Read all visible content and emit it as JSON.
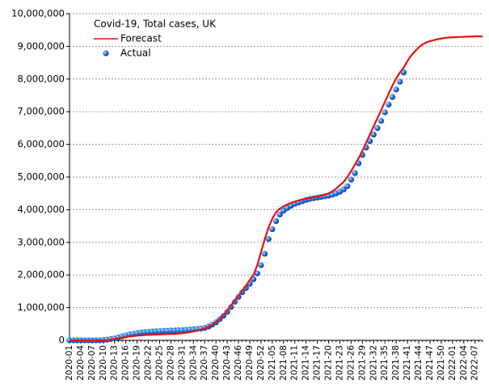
{
  "chart_data": {
    "type": "line",
    "title": "Covid-19, Total cases, UK",
    "categories": [
      "2020-01",
      null,
      null,
      "2020-04",
      null,
      null,
      "2020-07",
      null,
      null,
      "2020-10",
      null,
      null,
      "2020-13",
      null,
      null,
      "2020-16",
      null,
      null,
      "2020-19",
      null,
      null,
      "2020-22",
      null,
      null,
      "2020-25",
      null,
      null,
      "2020-28",
      null,
      null,
      "2020-31",
      null,
      null,
      "2020-34",
      null,
      null,
      "2020-37",
      null,
      null,
      "2020-40",
      null,
      null,
      "2020-43",
      null,
      null,
      "2020-46",
      null,
      null,
      "2020-49",
      null,
      null,
      "2020-52",
      null,
      null,
      "2021-05",
      null,
      null,
      "2021-08",
      null,
      null,
      "2021-11",
      null,
      null,
      "2021-14",
      null,
      null,
      "2021-17",
      null,
      null,
      "2021-20",
      null,
      null,
      "2021-23",
      null,
      null,
      "2021-26",
      null,
      null,
      "2021-29",
      null,
      null,
      "2021-32",
      null,
      null,
      "2021-35",
      null,
      null,
      "2021-38",
      null,
      null,
      "2021-41",
      null,
      null,
      "2021-44",
      null,
      null,
      "2021-47",
      null,
      null,
      "2021-50",
      null,
      null,
      "2022-01",
      null,
      null,
      "2022-04",
      null,
      null,
      "2022-07",
      null,
      null
    ],
    "series": [
      {
        "name": "Forecast",
        "mode": "line",
        "color": "#e8120c",
        "values": [
          0,
          0,
          0,
          0,
          0,
          0,
          0,
          0,
          0,
          0,
          0,
          20000,
          40000,
          60000,
          80000,
          100000,
          120000,
          130000,
          140000,
          150000,
          160000,
          165000,
          170000,
          175000,
          180000,
          185000,
          190000,
          195000,
          200000,
          205000,
          215000,
          230000,
          250000,
          270000,
          300000,
          330000,
          370000,
          420000,
          480000,
          560000,
          660000,
          780000,
          920000,
          1070000,
          1220000,
          1370000,
          1520000,
          1670000,
          1850000,
          2000000,
          2300000,
          2700000,
          3100000,
          3450000,
          3720000,
          3920000,
          4030000,
          4100000,
          4160000,
          4210000,
          4250000,
          4280000,
          4310000,
          4340000,
          4360000,
          4380000,
          4400000,
          4430000,
          4460000,
          4500000,
          4560000,
          4640000,
          4750000,
          4850000,
          5000000,
          5180000,
          5380000,
          5580000,
          5800000,
          6050000,
          6300000,
          6550000,
          6800000,
          7050000,
          7300000,
          7550000,
          7800000,
          8020000,
          8200000,
          8350000,
          8550000,
          8720000,
          8850000,
          8970000,
          9060000,
          9120000,
          9160000,
          9190000,
          9220000,
          9240000,
          9260000,
          9270000,
          9280000,
          9280000,
          9290000,
          9290000,
          9300000,
          9300000,
          9310000,
          9310000,
          9300000
        ]
      },
      {
        "name": "Actual",
        "mode": "markers",
        "color": "#1a5fd6",
        "values": [
          0,
          0,
          0,
          0,
          0,
          0,
          0,
          0,
          0,
          10000,
          20000,
          40000,
          60000,
          90000,
          120000,
          150000,
          180000,
          200000,
          220000,
          240000,
          250000,
          260000,
          270000,
          280000,
          280000,
          290000,
          290000,
          300000,
          300000,
          310000,
          310000,
          320000,
          330000,
          340000,
          350000,
          360000,
          380000,
          420000,
          480000,
          550000,
          650000,
          750000,
          870000,
          1020000,
          1180000,
          1330000,
          1470000,
          1600000,
          1730000,
          1870000,
          2050000,
          2300000,
          2650000,
          3100000,
          3400000,
          3650000,
          3850000,
          3970000,
          4050000,
          4120000,
          4180000,
          4220000,
          4260000,
          4300000,
          4330000,
          4350000,
          4370000,
          4390000,
          4410000,
          4430000,
          4460000,
          4500000,
          4550000,
          4620000,
          4720000,
          4920000,
          5120000,
          5420000,
          5680000,
          5900000,
          6100000,
          6300000,
          6500000,
          6720000,
          6980000,
          7220000,
          7450000,
          7680000,
          7920000,
          8200000,
          null,
          null,
          null,
          null,
          null,
          null,
          null,
          null,
          null,
          null,
          null,
          null,
          null,
          null,
          null,
          null,
          null,
          null,
          null,
          null,
          null
        ]
      }
    ],
    "ylim": [
      0,
      10000000
    ],
    "yticks": [
      0,
      {
        "value": 1000000,
        "label": "1,000,000"
      },
      {
        "value": 2000000,
        "label": "2,000,000"
      },
      {
        "value": 3000000,
        "label": "3,000,000"
      },
      {
        "value": 4000000,
        "label": "4,000,000"
      },
      {
        "value": 5000000,
        "label": "5,000,000"
      },
      {
        "value": 6000000,
        "label": "6,000,000"
      },
      {
        "value": 7000000,
        "label": "7,000,000"
      },
      {
        "value": 8000000,
        "label": "8,000,000"
      },
      {
        "value": 9000000,
        "label": "9,000,000"
      },
      {
        "value": 10000000,
        "label": "10,000,000"
      }
    ],
    "grid": true,
    "legend": "top-left"
  }
}
